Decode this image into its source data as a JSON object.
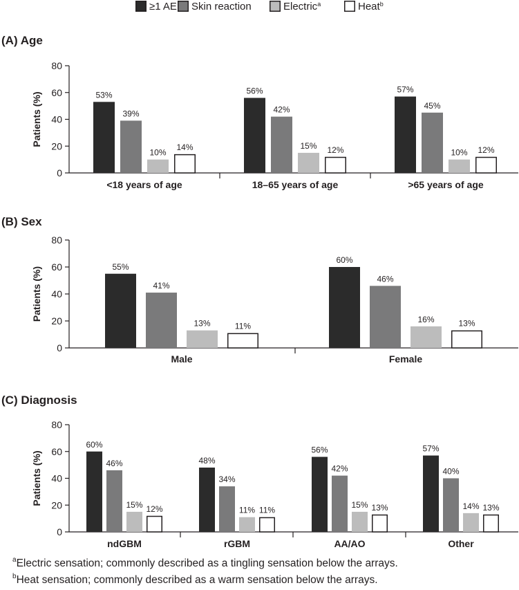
{
  "chart_data": [
    {
      "type": "bar",
      "title": "(A) Age",
      "ylabel": "Patients (%)",
      "ylim": [
        0,
        80
      ],
      "yticks": [
        0,
        20,
        40,
        60,
        80
      ],
      "categories": [
        "<18 years of age",
        "18–65 years of age",
        ">65 years of age"
      ],
      "series": [
        {
          "name": "≥1 AE",
          "values": [
            53,
            56,
            57
          ]
        },
        {
          "name": "Skin reaction",
          "values": [
            39,
            42,
            45
          ]
        },
        {
          "name": "Electric",
          "values": [
            10,
            15,
            10
          ]
        },
        {
          "name": "Heat",
          "values": [
            14,
            12,
            12
          ]
        }
      ],
      "data_labels": [
        [
          "53%",
          "56%",
          "57%"
        ],
        [
          "39%",
          "42%",
          "45%"
        ],
        [
          "10%",
          "15%",
          "10%"
        ],
        [
          "14%",
          "12%",
          "12%"
        ]
      ]
    },
    {
      "type": "bar",
      "title": "(B) Sex",
      "ylabel": "Patients (%)",
      "ylim": [
        0,
        80
      ],
      "yticks": [
        0,
        20,
        40,
        60,
        80
      ],
      "categories": [
        "Male",
        "Female"
      ],
      "series": [
        {
          "name": "≥1 AE",
          "values": [
            55,
            60
          ]
        },
        {
          "name": "Skin reaction",
          "values": [
            41,
            46
          ]
        },
        {
          "name": "Electric",
          "values": [
            13,
            16
          ]
        },
        {
          "name": "Heat",
          "values": [
            11,
            13
          ]
        }
      ],
      "data_labels": [
        [
          "55%",
          "60%"
        ],
        [
          "41%",
          "46%"
        ],
        [
          "13%",
          "16%"
        ],
        [
          "11%",
          "13%"
        ]
      ]
    },
    {
      "type": "bar",
      "title": "(C) Diagnosis",
      "ylabel": "Patients (%)",
      "ylim": [
        0,
        80
      ],
      "yticks": [
        0,
        20,
        40,
        60,
        80
      ],
      "categories": [
        "ndGBM",
        "rGBM",
        "AA/AO",
        "Other"
      ],
      "series": [
        {
          "name": "≥1 AE",
          "values": [
            60,
            48,
            56,
            57
          ]
        },
        {
          "name": "Skin reaction",
          "values": [
            46,
            34,
            42,
            40
          ]
        },
        {
          "name": "Electric",
          "values": [
            15,
            11,
            15,
            14
          ]
        },
        {
          "name": "Heat",
          "values": [
            12,
            11,
            13,
            13
          ]
        }
      ],
      "data_labels": [
        [
          "60%",
          "48%",
          "56%",
          "57%"
        ],
        [
          "46%",
          "34%",
          "42%",
          "40%"
        ],
        [
          "15%",
          "11%",
          "15%",
          "14%"
        ],
        [
          "12%",
          "11%",
          "13%",
          "13%"
        ]
      ]
    }
  ],
  "legend": {
    "placement": "top-center",
    "items": [
      {
        "label": "≥1 AE",
        "sup": ""
      },
      {
        "label": "Skin reaction",
        "sup": ""
      },
      {
        "label": "Electric",
        "sup": "a"
      },
      {
        "label": "Heat",
        "sup": "b"
      }
    ]
  },
  "colors": {
    "series": [
      "#2b2b2b",
      "#7a7a7b",
      "#bcbcbc",
      "#ffffff"
    ],
    "outline": "#231f20",
    "text": "#231f20"
  },
  "footnotes": [
    {
      "marker": "a",
      "text": "Electric sensation; commonly described as a tingling sensation below the arrays."
    },
    {
      "marker": "b",
      "text": "Heat sensation; commonly described as a warm sensation below the arrays."
    }
  ]
}
